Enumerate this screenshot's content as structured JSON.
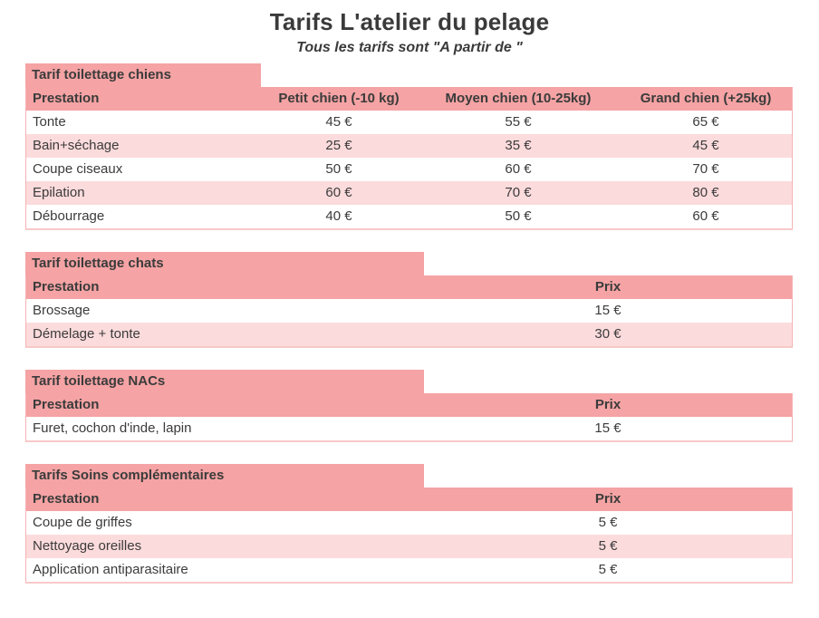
{
  "page": {
    "title": "Tarifs L'atelier du pelage",
    "subtitle": "Tous les tarifs sont \"A partir de \""
  },
  "colors": {
    "banner_pink": "#f5a3a4",
    "row_alt_pink": "#fcdbdc",
    "border_pink": "#f5b3b3",
    "text": "#3b3b3b"
  },
  "tables": [
    {
      "banner": "Tarif toilettage chiens",
      "columns": [
        "Prestation",
        "Petit chien (-10 kg)",
        "Moyen chien (10-25kg)",
        "Grand chien (+25kg)"
      ],
      "rows": [
        [
          "Tonte",
          "45 €",
          "55 €",
          "65 €"
        ],
        [
          "Bain+séchage",
          "25 €",
          "35 €",
          "45 €"
        ],
        [
          "Coupe ciseaux",
          "50 €",
          "60 €",
          "70 €"
        ],
        [
          "Epilation",
          "60 €",
          "70 €",
          "80 €"
        ],
        [
          "Débourrage",
          "40 €",
          "50 €",
          "60 €"
        ]
      ]
    },
    {
      "banner": "Tarif toilettage chats",
      "columns": [
        "Prestation",
        "Prix"
      ],
      "rows": [
        [
          "Brossage",
          "15 €"
        ],
        [
          "Démelage + tonte",
          "30 €"
        ]
      ]
    },
    {
      "banner": "Tarif toilettage NACs",
      "columns": [
        "Prestation",
        "Prix"
      ],
      "rows": [
        [
          "Furet, cochon d'inde, lapin",
          "15 €"
        ]
      ]
    },
    {
      "banner": "Tarifs Soins complémentaires",
      "columns": [
        "Prestation",
        "Prix"
      ],
      "rows": [
        [
          "Coupe de griffes",
          "5 €"
        ],
        [
          "Nettoyage oreilles",
          "5 €"
        ],
        [
          "Application antiparasitaire",
          "5 €"
        ]
      ]
    }
  ]
}
